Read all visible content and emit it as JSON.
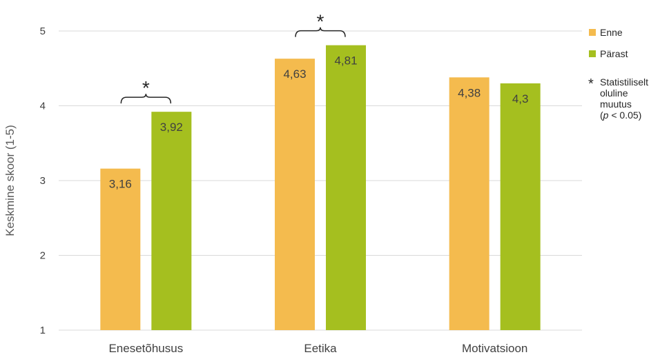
{
  "chart_data": {
    "type": "bar",
    "categories": [
      "Enesetõhusus",
      "Eetika",
      "Motivatsioon"
    ],
    "series": [
      {
        "name": "Enne",
        "values": [
          3.16,
          4.63,
          4.38
        ],
        "labels": [
          "3,16",
          "4,63",
          "4,38"
        ],
        "color": "#F4BB4E"
      },
      {
        "name": "Pärast",
        "values": [
          3.92,
          4.81,
          4.3
        ],
        "labels": [
          "3,92",
          "4,81",
          "4,3"
        ],
        "color": "#A5BF1F"
      }
    ],
    "ylabel": "Keskmine skoor (1-5)",
    "xlabel": "",
    "ylim": [
      1,
      5
    ],
    "yticks": [
      "1",
      "2",
      "3",
      "4",
      "5"
    ],
    "grid": true,
    "legend_position": "right",
    "significance": {
      "symbol": "*",
      "categories": [
        "Enesetõhusus",
        "Eetika"
      ],
      "legend_lines": [
        "Statistiliselt",
        "oluline",
        "muutus"
      ],
      "legend_p_italic": "p",
      "legend_p_rest": " < 0.05)"
    }
  }
}
